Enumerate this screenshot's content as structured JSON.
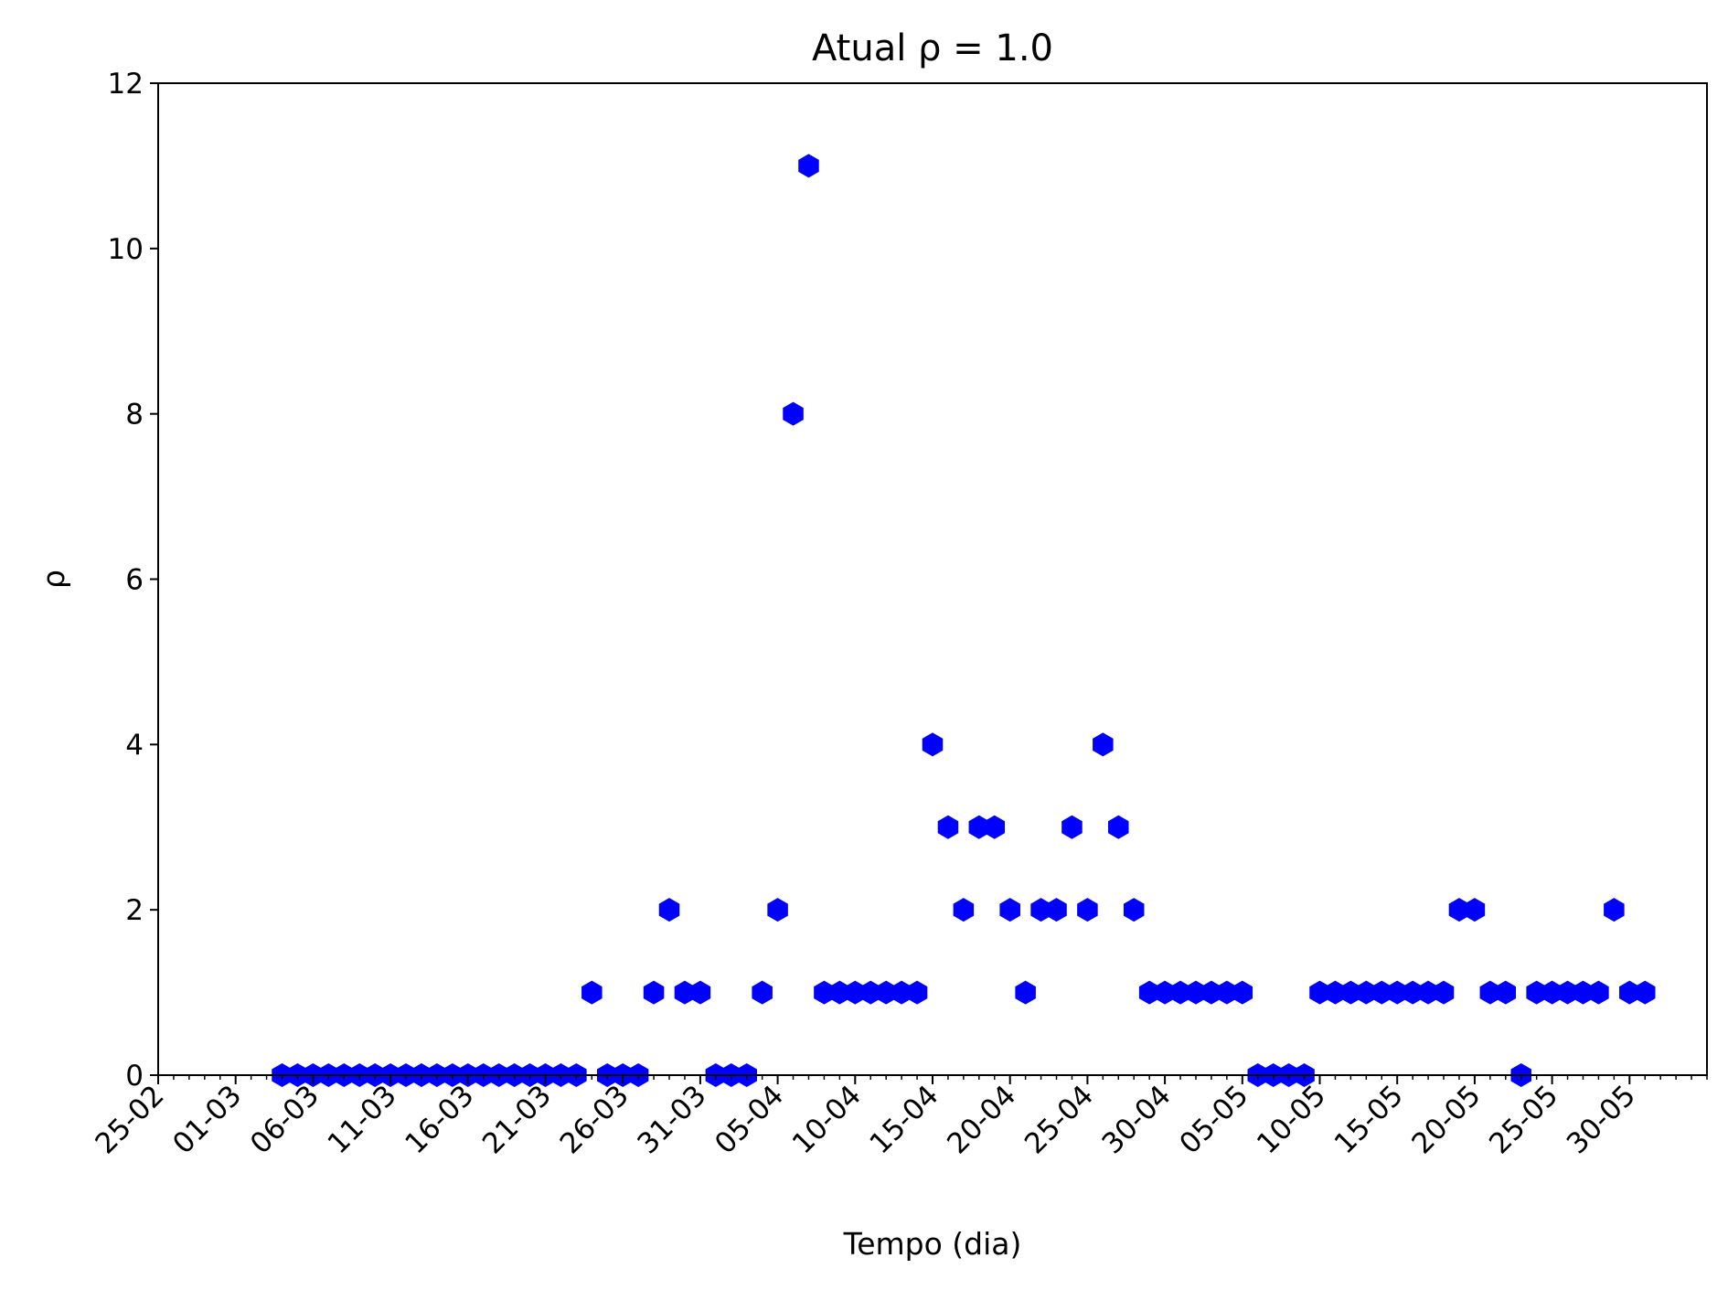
{
  "chart_data": {
    "type": "scatter",
    "title": "Atual ρ = 1.0",
    "xlabel": "Tempo (dia)",
    "ylabel": "ρ",
    "ylim": [
      0,
      12
    ],
    "yticks": [
      0,
      2,
      4,
      6,
      8,
      10,
      12
    ],
    "xlim": [
      "2020-02-25",
      "2020-06-04"
    ],
    "xticks": [
      "25-02",
      "01-03",
      "06-03",
      "11-03",
      "16-03",
      "21-03",
      "26-03",
      "31-03",
      "05-04",
      "10-04",
      "15-04",
      "20-04",
      "25-04",
      "30-04",
      "05-05",
      "10-05",
      "15-05",
      "20-05",
      "25-05",
      "30-05"
    ],
    "grid": false,
    "marker": "hexagon",
    "color": "#0000ff",
    "series": [
      {
        "x": [
          "2020-03-04",
          "2020-03-05",
          "2020-03-06",
          "2020-03-07",
          "2020-03-08",
          "2020-03-09",
          "2020-03-10",
          "2020-03-11",
          "2020-03-12",
          "2020-03-13",
          "2020-03-14",
          "2020-03-15",
          "2020-03-16",
          "2020-03-17",
          "2020-03-18",
          "2020-03-19",
          "2020-03-20",
          "2020-03-21",
          "2020-03-22",
          "2020-03-23",
          "2020-03-24",
          "2020-03-25",
          "2020-03-26",
          "2020-03-27",
          "2020-03-28",
          "2020-03-29",
          "2020-03-30",
          "2020-03-31",
          "2020-04-01",
          "2020-04-02",
          "2020-04-03",
          "2020-04-04",
          "2020-04-05",
          "2020-04-06",
          "2020-04-07",
          "2020-04-08",
          "2020-04-09",
          "2020-04-10",
          "2020-04-11",
          "2020-04-12",
          "2020-04-13",
          "2020-04-14",
          "2020-04-15",
          "2020-04-16",
          "2020-04-17",
          "2020-04-18",
          "2020-04-19",
          "2020-04-20",
          "2020-04-21",
          "2020-04-22",
          "2020-04-23",
          "2020-04-24",
          "2020-04-25",
          "2020-04-26",
          "2020-04-27",
          "2020-04-28",
          "2020-04-29",
          "2020-04-30",
          "2020-05-01",
          "2020-05-02",
          "2020-05-03",
          "2020-05-04",
          "2020-05-05",
          "2020-05-06",
          "2020-05-07",
          "2020-05-08",
          "2020-05-09",
          "2020-05-10",
          "2020-05-11",
          "2020-05-12",
          "2020-05-13",
          "2020-05-14",
          "2020-05-15",
          "2020-05-16",
          "2020-05-17",
          "2020-05-18",
          "2020-05-19",
          "2020-05-20",
          "2020-05-21",
          "2020-05-22",
          "2020-05-23",
          "2020-05-24",
          "2020-05-25",
          "2020-05-26",
          "2020-05-27",
          "2020-05-28",
          "2020-05-29",
          "2020-05-30",
          "2020-05-31"
        ],
        "y": [
          0,
          0,
          0,
          0,
          0,
          0,
          0,
          0,
          0,
          0,
          0,
          0,
          0,
          0,
          0,
          0,
          0,
          0,
          0,
          0,
          1,
          0,
          0,
          0,
          1,
          2,
          1,
          1,
          0,
          0,
          0,
          1,
          2,
          8,
          11,
          1,
          1,
          1,
          1,
          1,
          1,
          1,
          4,
          3,
          2,
          3,
          3,
          2,
          1,
          2,
          2,
          3,
          2,
          4,
          3,
          2,
          1,
          1,
          1,
          1,
          1,
          1,
          1,
          0,
          0,
          0,
          0,
          1,
          1,
          1,
          1,
          1,
          1,
          1,
          1,
          1,
          2,
          2,
          1,
          1,
          0,
          1,
          1,
          1,
          1,
          1,
          2,
          1,
          1
        ]
      }
    ]
  }
}
